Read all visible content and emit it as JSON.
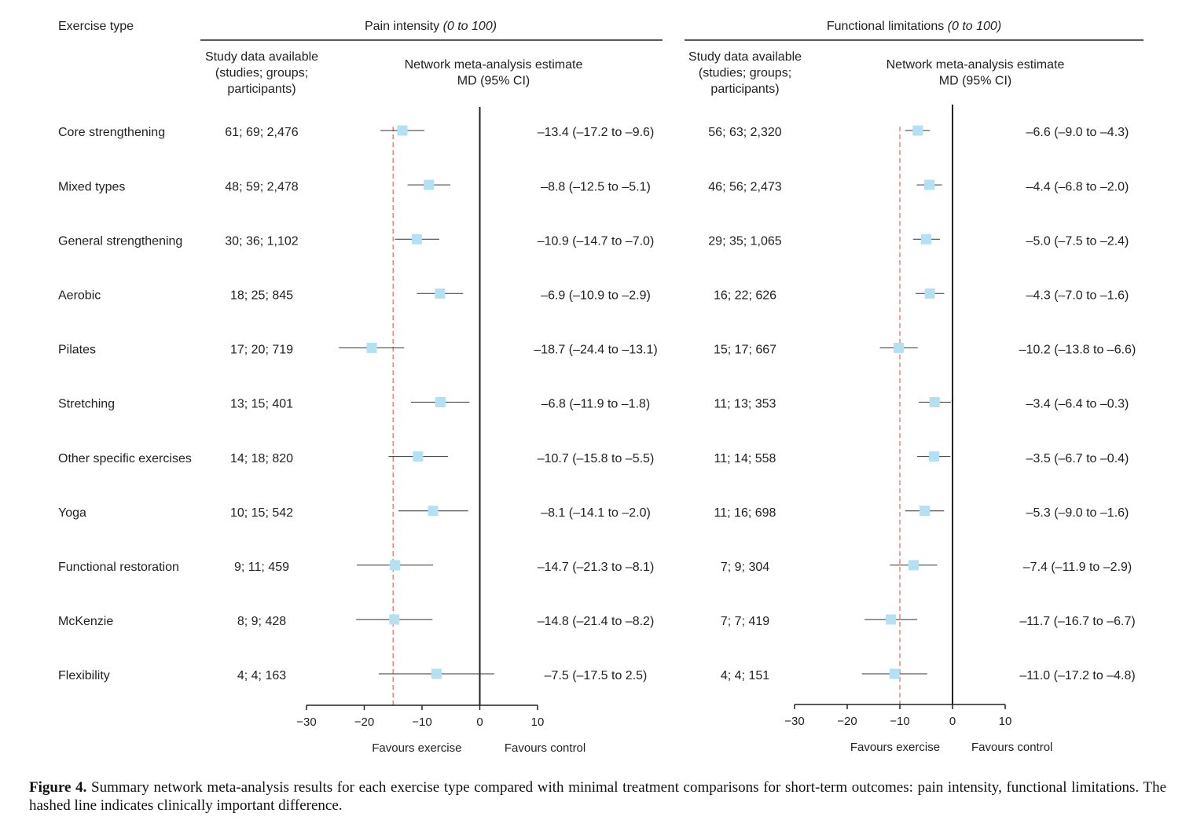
{
  "labels": {
    "exercise_type": "Exercise type",
    "study_data": [
      "Study data available",
      "(studies; groups;",
      "participants)"
    ],
    "nma": [
      "Network meta-analysis estimate",
      "MD (95% CI)"
    ],
    "favours_exercise": "Favours exercise",
    "favours_control": "Favours control"
  },
  "caption": {
    "label": "Figure 4.",
    "text": "Summary network meta-analysis results for each exercise type compared with minimal treatment comparisons for short-term outcomes: pain intensity, functional limitations. The hashed line indicates clinically important difference."
  },
  "colors": {
    "marker": "#b3e0f2",
    "mcid_line": "#f0807a",
    "axis": "#222222"
  },
  "exercise_types": [
    "Core strengthening",
    "Mixed types",
    "General strengthening",
    "Aerobic",
    "Pilates",
    "Stretching",
    "Other specific exercises",
    "Yoga",
    "Functional restoration",
    "McKenzie",
    "Flexibility"
  ],
  "chart_data": [
    {
      "type": "forest",
      "title": "Pain intensity",
      "title_italic": "(0 to 100)",
      "xlim": [
        -30,
        10
      ],
      "xticks": [
        -30,
        -20,
        -10,
        0,
        10
      ],
      "reference_line": -15,
      "study_data": [
        "61; 69; 2,476",
        "48; 59; 2,478",
        "30; 36; 1,102",
        "18; 25; 845",
        "17; 20; 719",
        "13; 15; 401",
        "14; 18; 820",
        "10; 15; 542",
        "9; 11; 459",
        "8; 9; 428",
        "4; 4; 163"
      ],
      "estimates": [
        -13.4,
        -8.8,
        -10.9,
        -6.9,
        -18.7,
        -6.8,
        -10.7,
        -8.1,
        -14.7,
        -14.8,
        -7.5
      ],
      "lower": [
        -17.2,
        -12.5,
        -14.7,
        -10.9,
        -24.4,
        -11.9,
        -15.8,
        -14.1,
        -21.3,
        -21.4,
        -17.5
      ],
      "upper": [
        -9.6,
        -5.1,
        -7.0,
        -2.9,
        -13.1,
        -1.8,
        -5.5,
        -2.0,
        -8.1,
        -8.2,
        2.5
      ],
      "estimate_text": [
        "–13.4 (–17.2 to –9.6)",
        "–8.8 (–12.5 to –5.1)",
        "–10.9 (–14.7 to –7.0)",
        "–6.9 (–10.9 to –2.9)",
        "–18.7 (–24.4 to –13.1)",
        "–6.8 (–11.9 to –1.8)",
        "–10.7 (–15.8 to –5.5)",
        "–8.1 (–14.1 to –2.0)",
        "–14.7 (–21.3 to –8.1)",
        "–14.8 (–21.4 to –8.2)",
        "–7.5 (–17.5 to 2.5)"
      ]
    },
    {
      "type": "forest",
      "title": "Functional limitations",
      "title_italic": "(0 to 100)",
      "xlim": [
        -30,
        10
      ],
      "xticks": [
        -30,
        -20,
        -10,
        0,
        10
      ],
      "reference_line": -10,
      "study_data": [
        "56; 63; 2,320",
        "46; 56; 2,473",
        "29; 35; 1,065",
        "16; 22; 626",
        "15; 17; 667",
        "11; 13; 353",
        "11; 14; 558",
        "11; 16; 698",
        "7; 9; 304",
        "7; 7; 419",
        "4; 4; 151"
      ],
      "estimates": [
        -6.6,
        -4.4,
        -5.0,
        -4.3,
        -10.2,
        -3.4,
        -3.5,
        -5.3,
        -7.4,
        -11.7,
        -11.0
      ],
      "lower": [
        -9.0,
        -6.8,
        -7.5,
        -7.0,
        -13.8,
        -6.4,
        -6.7,
        -9.0,
        -11.9,
        -16.7,
        -17.2
      ],
      "upper": [
        -4.3,
        -2.0,
        -2.4,
        -1.6,
        -6.6,
        -0.3,
        -0.4,
        -1.6,
        -2.9,
        -6.7,
        -4.8
      ],
      "estimate_text": [
        "–6.6 (–9.0 to –4.3)",
        "–4.4 (–6.8 to –2.0)",
        "–5.0 (–7.5 to –2.4)",
        "–4.3 (–7.0 to –1.6)",
        "–10.2 (–13.8 to –6.6)",
        "–3.4 (–6.4 to –0.3)",
        "–3.5 (–6.7 to –0.4)",
        "–5.3 (–9.0 to –1.6)",
        "–7.4 (–11.9 to –2.9)",
        "–11.7 (–16.7 to –6.7)",
        "–11.0 (–17.2 to –4.8)"
      ]
    }
  ]
}
